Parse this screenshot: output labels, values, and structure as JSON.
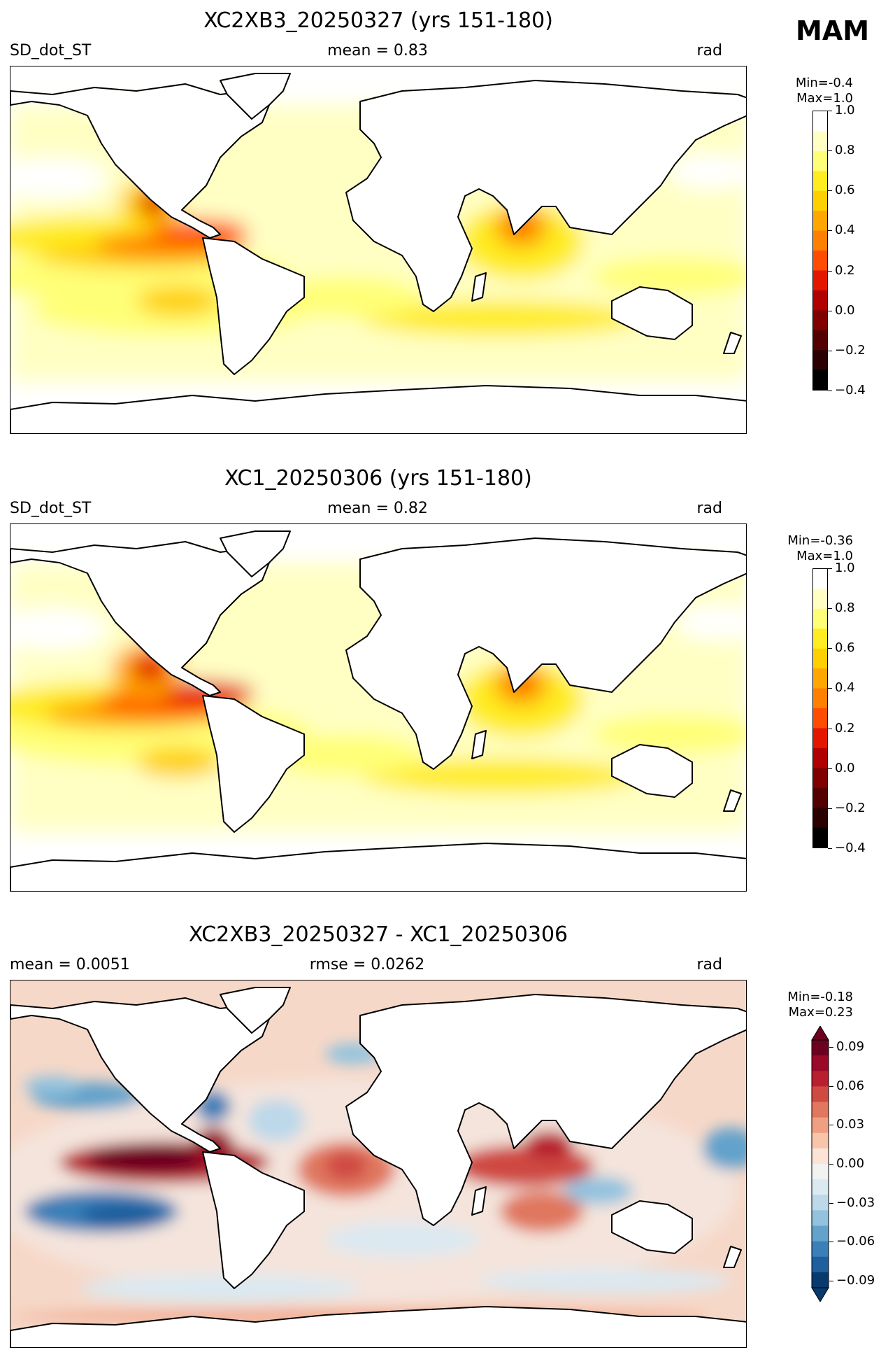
{
  "season": "MAM",
  "panels": [
    {
      "title": "XC2XB3_20250327 (yrs 151-180)",
      "left_label": "SD_dot_ST",
      "mid_label": "mean = 0.83",
      "right_label": "rad",
      "min_text": "Min=-0.4",
      "max_text": "Max=1.0",
      "colorbar": {
        "ticks": [
          "1.0",
          "0.8",
          "0.6",
          "0.4",
          "0.2",
          "0.0",
          "−0.2",
          "−0.4"
        ],
        "colors": [
          "#ffffff",
          "#ffffc4",
          "#ffff77",
          "#ffec21",
          "#ffd000",
          "#ffa600",
          "#ff7f00",
          "#ff4c00",
          "#e31700",
          "#b00000",
          "#800000",
          "#550000",
          "#2a0000",
          "#000000"
        ]
      }
    },
    {
      "title": "XC1_20250306 (yrs 151-180)",
      "left_label": "SD_dot_ST",
      "mid_label": "mean = 0.82",
      "right_label": "rad",
      "min_text": "Min=-0.36",
      "max_text": "Max=1.0",
      "colorbar": {
        "ticks": [
          "1.0",
          "0.8",
          "0.6",
          "0.4",
          "0.2",
          "0.0",
          "−0.2",
          "−0.4"
        ],
        "colors": [
          "#ffffff",
          "#ffffc4",
          "#ffff77",
          "#ffec21",
          "#ffd000",
          "#ffa600",
          "#ff7f00",
          "#ff4c00",
          "#e31700",
          "#b00000",
          "#800000",
          "#550000",
          "#2a0000",
          "#000000"
        ]
      }
    },
    {
      "title": "XC2XB3_20250327 - XC1_20250306",
      "left_label": "mean = 0.0051",
      "mid_label": "rmse = 0.0262",
      "right_label": "rad",
      "min_text": "Min=-0.18",
      "max_text": "Max=0.23",
      "colorbar": {
        "ticks": [
          "0.09",
          "0.06",
          "0.03",
          "0.00",
          "−0.03",
          "−0.06",
          "−0.09"
        ],
        "colors": [
          "#6d0020",
          "#9a0a28",
          "#b8202f",
          "#cf4a42",
          "#e0775e",
          "#ef9f82",
          "#f8c4aa",
          "#fbe3d6",
          "#f2f2f2",
          "#dbe9f1",
          "#bcd8e9",
          "#92c2de",
          "#62a2cb",
          "#3a7fb8",
          "#1f5f9e",
          "#083a6e"
        ]
      }
    }
  ],
  "colors": {
    "diff_positive_strong": "#6d0020",
    "diff_negative_strong": "#1f5f9e",
    "land": "#ffffff",
    "coast": "#000000"
  }
}
